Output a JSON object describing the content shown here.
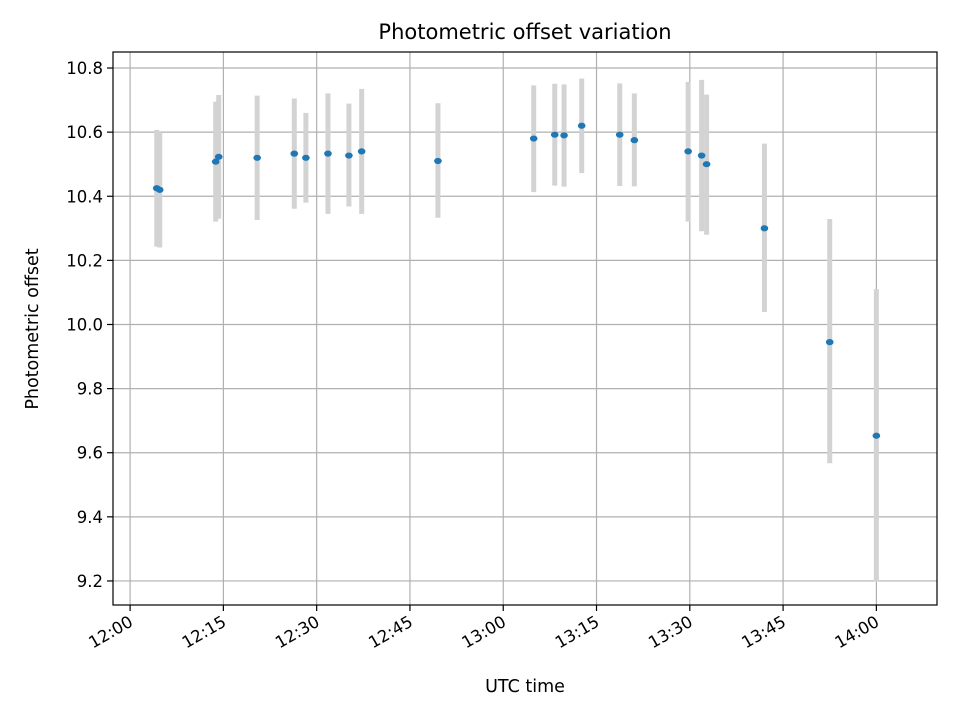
{
  "chart_data": {
    "type": "scatter",
    "title": "Photometric offset variation",
    "xlabel": "UTC time",
    "ylabel": "Photometric offset",
    "xlim": [
      "11:57:15",
      "14:09:45"
    ],
    "ylim": [
      9.125,
      10.85
    ],
    "grid": true,
    "x_ticks": [
      "12:00",
      "12:15",
      "12:30",
      "12:45",
      "13:00",
      "13:15",
      "13:30",
      "13:45",
      "14:00"
    ],
    "y_ticks": [
      "9.2",
      "9.4",
      "9.6",
      "9.8",
      "10.0",
      "10.2",
      "10.4",
      "10.6",
      "10.8"
    ],
    "colors": {
      "marker": "#1f77b4",
      "errorbar": "#d3d3d3",
      "grid": "#b0b0b0"
    },
    "points": [
      {
        "x": "12:04:17",
        "y": 10.425,
        "yerr_low": 10.243,
        "yerr_high": 10.607
      },
      {
        "x": "12:04:46",
        "y": 10.42,
        "yerr_low": 10.24,
        "yerr_high": 10.6
      },
      {
        "x": "12:13:46",
        "y": 10.508,
        "yerr_low": 10.321,
        "yerr_high": 10.695
      },
      {
        "x": "12:14:15",
        "y": 10.523,
        "yerr_low": 10.33,
        "yerr_high": 10.716
      },
      {
        "x": "12:20:26",
        "y": 10.52,
        "yerr_low": 10.326,
        "yerr_high": 10.714
      },
      {
        "x": "12:26:24",
        "y": 10.533,
        "yerr_low": 10.361,
        "yerr_high": 10.705
      },
      {
        "x": "12:28:16",
        "y": 10.52,
        "yerr_low": 10.38,
        "yerr_high": 10.66
      },
      {
        "x": "12:31:49",
        "y": 10.533,
        "yerr_low": 10.345,
        "yerr_high": 10.721
      },
      {
        "x": "12:35:11",
        "y": 10.527,
        "yerr_low": 10.368,
        "yerr_high": 10.689
      },
      {
        "x": "12:37:14",
        "y": 10.54,
        "yerr_low": 10.345,
        "yerr_high": 10.735
      },
      {
        "x": "12:49:30",
        "y": 10.51,
        "yerr_low": 10.333,
        "yerr_high": 10.69
      },
      {
        "x": "13:04:54",
        "y": 10.58,
        "yerr_low": 10.413,
        "yerr_high": 10.746
      },
      {
        "x": "13:08:17",
        "y": 10.592,
        "yerr_low": 10.433,
        "yerr_high": 10.751
      },
      {
        "x": "13:09:47",
        "y": 10.59,
        "yerr_low": 10.43,
        "yerr_high": 10.749
      },
      {
        "x": "13:12:37",
        "y": 10.62,
        "yerr_low": 10.472,
        "yerr_high": 10.767
      },
      {
        "x": "13:18:44",
        "y": 10.592,
        "yerr_low": 10.432,
        "yerr_high": 10.752
      },
      {
        "x": "13:21:05",
        "y": 10.575,
        "yerr_low": 10.431,
        "yerr_high": 10.721
      },
      {
        "x": "13:29:44",
        "y": 10.54,
        "yerr_low": 10.321,
        "yerr_high": 10.757
      },
      {
        "x": "13:31:54",
        "y": 10.527,
        "yerr_low": 10.291,
        "yerr_high": 10.763
      },
      {
        "x": "13:32:42",
        "y": 10.5,
        "yerr_low": 10.28,
        "yerr_high": 10.717
      },
      {
        "x": "13:42:00",
        "y": 10.3,
        "yerr_low": 10.039,
        "yerr_high": 10.564
      },
      {
        "x": "13:52:30",
        "y": 9.945,
        "yerr_low": 9.567,
        "yerr_high": 10.329
      },
      {
        "x": "14:00:00",
        "y": 9.653,
        "yerr_low": 9.198,
        "yerr_high": 10.11
      }
    ]
  }
}
